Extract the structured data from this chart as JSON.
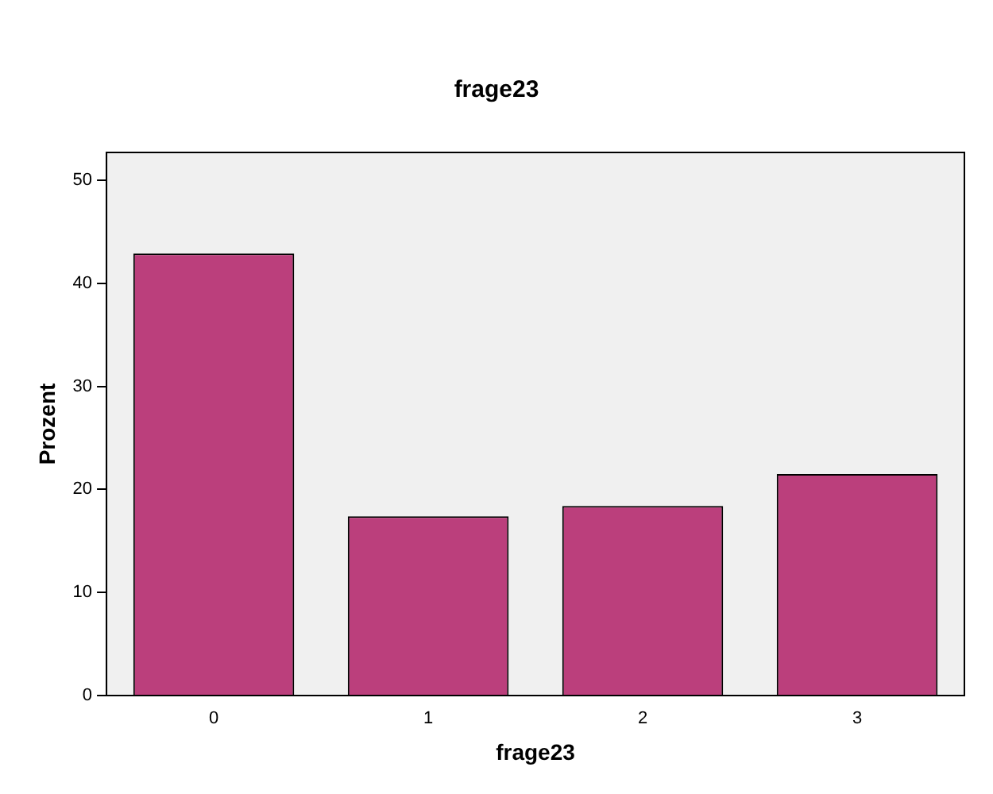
{
  "chart_data": {
    "type": "bar",
    "title": "frage23",
    "xlabel": "frage23",
    "ylabel": "Prozent",
    "categories": [
      "0",
      "1",
      "2",
      "3"
    ],
    "series": [
      {
        "color": "#bb3f7c",
        "values": [
          42.9,
          17.4,
          18.4,
          21.5
        ]
      }
    ],
    "ylim": [
      0,
      52.7
    ],
    "yticks": [
      0,
      10,
      20,
      30,
      40,
      50
    ],
    "grid": false,
    "legend": false
  }
}
